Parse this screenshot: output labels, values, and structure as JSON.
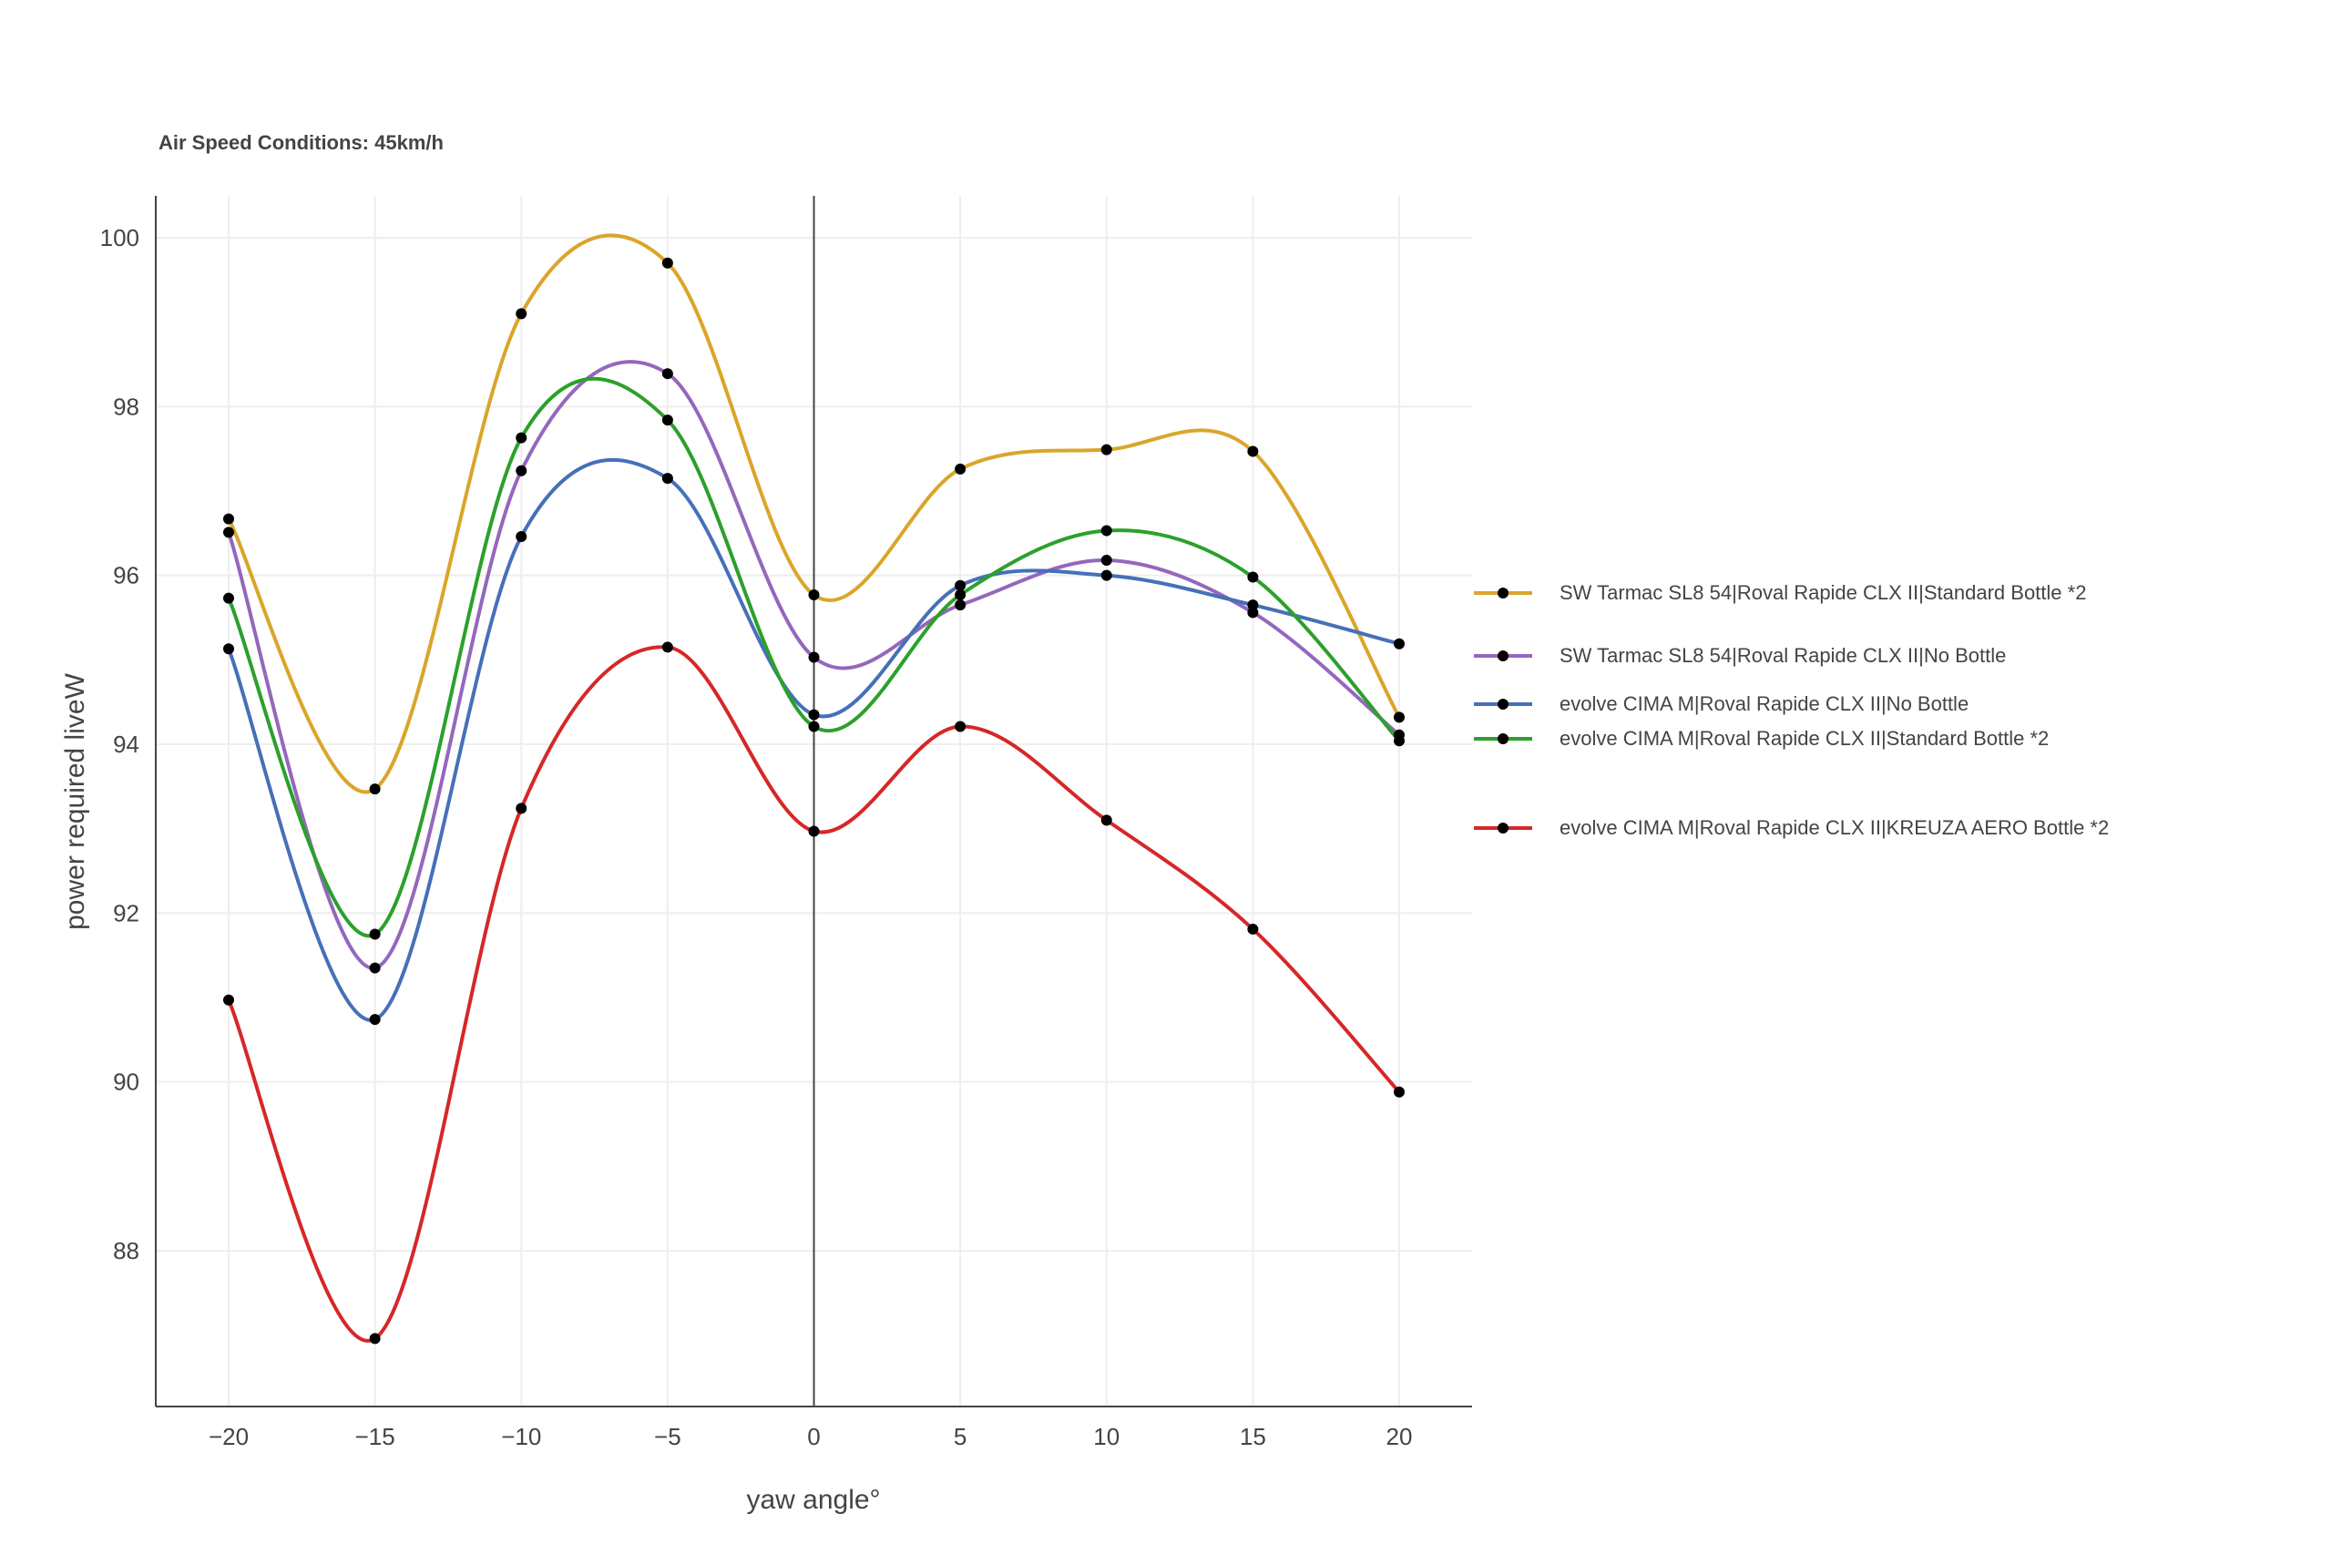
{
  "chart_data": {
    "type": "line",
    "title": "Air Speed Conditions: 45km/h",
    "xlabel": "yaw angle°",
    "ylabel": "power required liveW",
    "x": [
      -20,
      -15,
      -10,
      -5,
      0,
      5,
      10,
      15,
      20
    ],
    "xticks": [
      -20,
      -15,
      -10,
      -5,
      0,
      5,
      10,
      15,
      20
    ],
    "xtick_labels": [
      "−20",
      "−15",
      "−10",
      "−5",
      "0",
      "5",
      "10",
      "15",
      "20"
    ],
    "yticks": [
      88,
      90,
      92,
      94,
      96,
      98,
      100
    ],
    "ytick_labels": [
      "88",
      "90",
      "92",
      "94",
      "96",
      "98",
      "100"
    ],
    "xlim": [
      -22.5,
      22.5
    ],
    "ylim": [
      86.2,
      100.5
    ],
    "grid": true,
    "legend_position": "right",
    "series": [
      {
        "name": "SW Tarmac SL8 54|Roval Rapide CLX II|Standard Bottle *2",
        "color": "#DAA52A",
        "values": [
          96.67,
          93.47,
          99.1,
          99.7,
          95.77,
          97.26,
          97.49,
          97.47,
          94.32
        ]
      },
      {
        "name": "SW Tarmac SL8 54|Roval Rapide CLX II|No Bottle",
        "color": "#9467BD",
        "values": [
          96.51,
          91.35,
          97.24,
          98.39,
          95.03,
          95.65,
          96.18,
          95.56,
          94.11
        ]
      },
      {
        "name": "evolve CIMA M|Roval Rapide CLX II|No Bottle",
        "color": "#4670B8",
        "values": [
          95.13,
          90.74,
          96.46,
          97.15,
          94.35,
          95.88,
          96.0,
          95.65,
          95.19
        ]
      },
      {
        "name": "evolve CIMA M|Roval Rapide CLX II|Standard Bottle *2",
        "color": "#2CA02C",
        "values": [
          95.73,
          91.75,
          97.63,
          97.84,
          94.21,
          95.77,
          96.53,
          95.98,
          94.04
        ]
      },
      {
        "name": "evolve CIMA M|Roval Rapide CLX II|KREUZA AERO Bottle *2",
        "color": "#D62728",
        "values": [
          90.97,
          86.96,
          93.24,
          95.15,
          92.97,
          94.21,
          93.1,
          91.81,
          89.88
        ]
      }
    ]
  }
}
